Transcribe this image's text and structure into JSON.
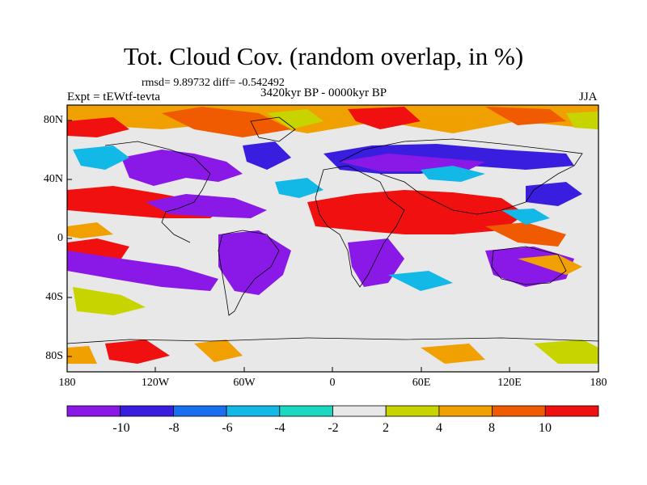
{
  "title": "Tot. Cloud Cov. (random overlap, in %)",
  "stats": "rmsd= 9.89732 diff= -0.542492",
  "experiment": "Expt = tEWtf-tevta",
  "period": "3420kyr BP - 0000kyr BP",
  "season": "JJA",
  "lat_labels": [
    "80N",
    "40N",
    "0",
    "40S",
    "80S"
  ],
  "lon_labels": [
    "180",
    "120W",
    "60W",
    "0",
    "60E",
    "120E",
    "180"
  ],
  "colorbar": {
    "labels": [
      "-10",
      "-8",
      "-6",
      "-4",
      "-2",
      "2",
      "4",
      "8",
      "10"
    ],
    "colors": [
      "#8a18e6",
      "#3a1ee0",
      "#1a6ef0",
      "#12b8e6",
      "#1ad9c0",
      "#e8e8e8",
      "#c8d400",
      "#f0a000",
      "#f05a00",
      "#f01010"
    ]
  },
  "palette": {
    "neg_strong": "#8a18e6",
    "neg_blue": "#3a1ee0",
    "neg_mid": "#1a6ef0",
    "neg_light": "#12b8e6",
    "neutral": "#e8e8e8",
    "pos_light": "#c8d400",
    "pos_mid": "#f0a000",
    "pos_red": "#f01010"
  }
}
